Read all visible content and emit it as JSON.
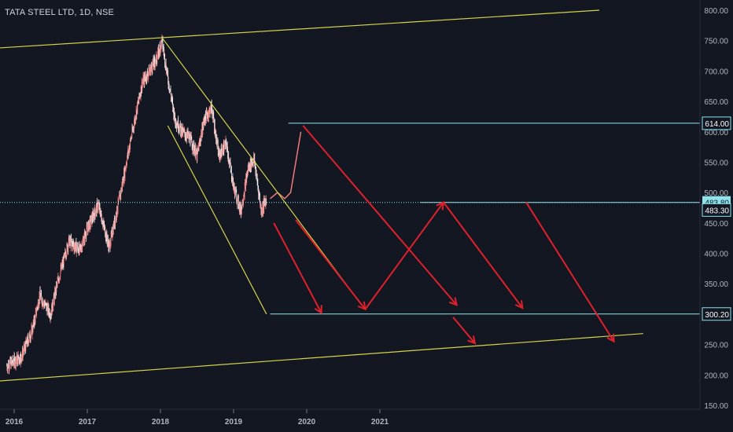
{
  "header": {
    "title": "TATA STEEL LTD, 1D, NSE"
  },
  "colors": {
    "background": "#131722",
    "trendline": "#d4d44a",
    "arrow": "#e0202a",
    "hline": "#8fe3ec",
    "candle_up": "#ef7a7a",
    "candle_down": "#f0f0f0",
    "axis_text": "#b2b5be"
  },
  "chart_data": {
    "type": "candlestick",
    "title": "TATA STEEL LTD, 1D, NSE",
    "xlabel": "",
    "ylabel": "",
    "ylim": [
      150,
      800
    ],
    "y_ticks": [
      "800.00",
      "750.00",
      "700.00",
      "650.00",
      "600.00",
      "550.00",
      "500.00",
      "450.00",
      "400.00",
      "350.00",
      "300.00",
      "250.00",
      "200.00",
      "150.00"
    ],
    "x_ticks": [
      "2016",
      "2017",
      "2018",
      "2019",
      "2020",
      "2021"
    ],
    "price_path": [
      [
        2015.9,
        215
      ],
      [
        2016.1,
        230
      ],
      [
        2016.25,
        275
      ],
      [
        2016.35,
        330
      ],
      [
        2016.5,
        300
      ],
      [
        2016.6,
        355
      ],
      [
        2016.75,
        420
      ],
      [
        2016.9,
        405
      ],
      [
        2017.0,
        440
      ],
      [
        2017.15,
        480
      ],
      [
        2017.3,
        410
      ],
      [
        2017.45,
        495
      ],
      [
        2017.55,
        560
      ],
      [
        2017.65,
        620
      ],
      [
        2017.75,
        680
      ],
      [
        2017.85,
        700
      ],
      [
        2017.95,
        720
      ],
      [
        2018.02,
        750
      ],
      [
        2018.1,
        690
      ],
      [
        2018.2,
        620
      ],
      [
        2018.3,
        600
      ],
      [
        2018.4,
        590
      ],
      [
        2018.5,
        560
      ],
      [
        2018.6,
        620
      ],
      [
        2018.7,
        640
      ],
      [
        2018.8,
        560
      ],
      [
        2018.9,
        580
      ],
      [
        2019.0,
        510
      ],
      [
        2019.1,
        470
      ],
      [
        2019.2,
        540
      ],
      [
        2019.28,
        555
      ],
      [
        2019.38,
        470
      ],
      [
        2019.45,
        490
      ]
    ],
    "projection_path": [
      [
        2019.5,
        490
      ],
      [
        2019.6,
        500
      ],
      [
        2019.7,
        490
      ],
      [
        2019.78,
        500
      ],
      [
        2019.85,
        550
      ],
      [
        2019.92,
        600
      ]
    ],
    "horizontal_levels": [
      {
        "price": 614.0,
        "label": "614.00"
      },
      {
        "price": 483.8,
        "label": "483.80"
      },
      {
        "price": 300.2,
        "label": "300.20"
      }
    ],
    "last_price_label": "483.30",
    "trendlines": [
      {
        "from": [
          2015.8,
          738
        ],
        "to": [
          2024.0,
          800
        ]
      },
      {
        "from": [
          2015.8,
          190
        ],
        "to": [
          2024.6,
          268
        ]
      },
      {
        "from": [
          2018.02,
          755
        ],
        "to": [
          2020.75,
          315
        ]
      },
      {
        "from": [
          2018.1,
          610
        ],
        "to": [
          2019.45,
          300
        ]
      }
    ],
    "arrows": [
      {
        "from": [
          2019.55,
          450
        ],
        "to": [
          2020.2,
          302
        ]
      },
      {
        "from": [
          2019.85,
          455
        ],
        "to": [
          2020.8,
          308
        ]
      },
      {
        "from": [
          2020.8,
          308
        ],
        "to": [
          2021.87,
          484
        ]
      },
      {
        "from": [
          2021.87,
          484
        ],
        "to": [
          2022.95,
          310
        ]
      },
      {
        "from": [
          2019.95,
          610
        ],
        "to": [
          2022.05,
          315
        ]
      },
      {
        "from": [
          2022.0,
          295
        ],
        "to": [
          2022.3,
          252
        ]
      },
      {
        "from": [
          2023.0,
          484
        ],
        "to": [
          2024.2,
          255
        ]
      }
    ]
  }
}
